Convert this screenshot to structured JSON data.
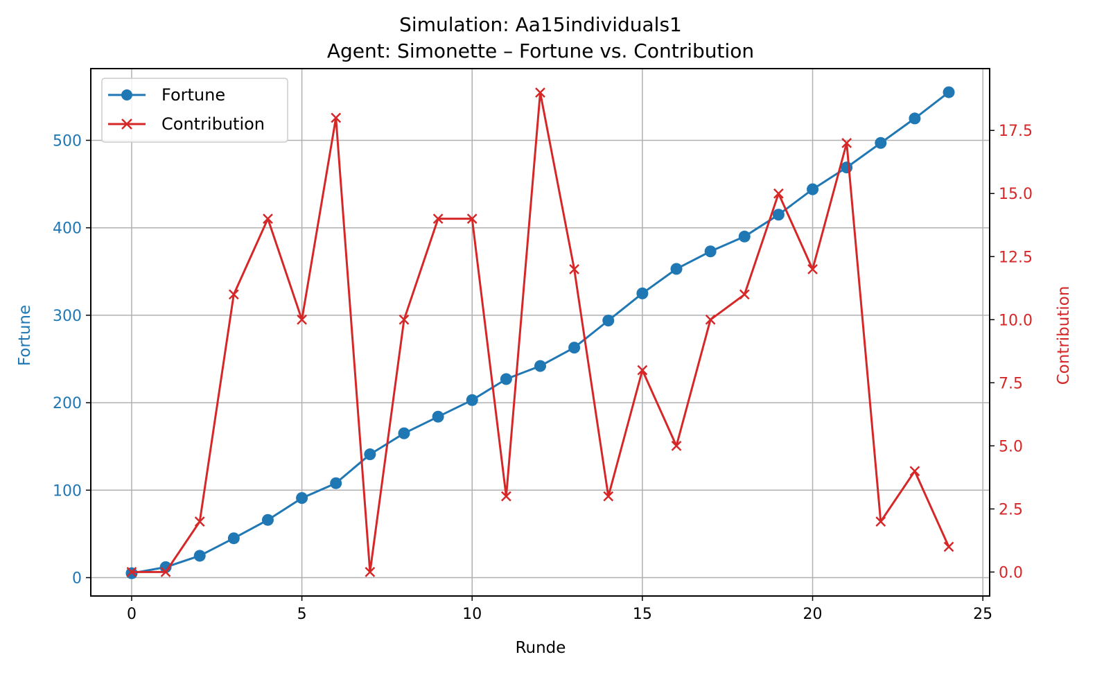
{
  "chart_data": {
    "type": "line",
    "title": "Simulation: Aa15individuals1",
    "subtitle": "Agent: Simonette – Fortune vs. Contribution",
    "xlabel": "Runde",
    "ylabel": "Fortune",
    "y2label": "Contribution",
    "xlim": [
      -1.2,
      25.2
    ],
    "ylim": [
      -21,
      582
    ],
    "y2lim": [
      -0.95,
      19.95
    ],
    "xticks": [
      "0",
      "5",
      "10",
      "15",
      "20",
      "25"
    ],
    "yticks": [
      "0",
      "100",
      "200",
      "300",
      "400",
      "500"
    ],
    "y2ticks": [
      "0.0",
      "2.5",
      "5.0",
      "7.5",
      "10.0",
      "12.5",
      "15.0",
      "17.5"
    ],
    "grid": true,
    "legend_position": "top-left",
    "x": [
      0,
      1,
      2,
      3,
      4,
      5,
      6,
      7,
      8,
      9,
      10,
      11,
      12,
      13,
      14,
      15,
      16,
      17,
      18,
      19,
      20,
      21,
      22,
      23,
      24
    ],
    "series": [
      {
        "name": "Fortune",
        "axis": "left",
        "color": "#1f77b4",
        "marker": "circle",
        "values": [
          5,
          12,
          25,
          45,
          66,
          91,
          108,
          141,
          165,
          184,
          203,
          227,
          242,
          263,
          294,
          325,
          353,
          373,
          390,
          415,
          444,
          469,
          497,
          525,
          555
        ]
      },
      {
        "name": "Contribution",
        "axis": "right",
        "color": "#d62728",
        "marker": "x",
        "values": [
          0,
          0,
          2,
          11,
          14,
          10,
          18,
          0,
          10,
          14,
          14,
          3,
          19,
          12,
          3,
          8,
          5,
          10,
          11,
          15,
          12,
          17,
          2,
          4,
          1
        ]
      }
    ]
  }
}
